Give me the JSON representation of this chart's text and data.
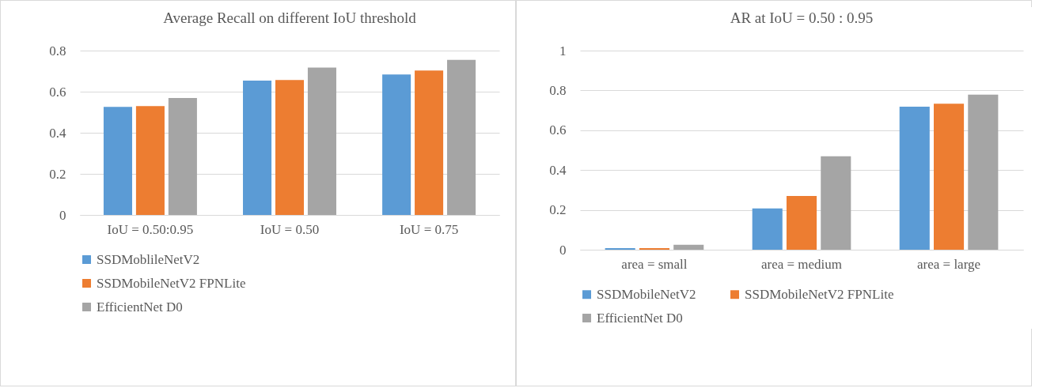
{
  "chart_data": [
    {
      "type": "bar",
      "title": "Average Recall on different IoU threshold",
      "categories": [
        "IoU = 0.50:0.95",
        "IoU = 0.50",
        "IoU = 0.75"
      ],
      "series": [
        {
          "name": "SSDMoblileNetV2",
          "color": "#5b9bd5",
          "values": [
            0.526,
            0.654,
            0.684
          ]
        },
        {
          "name": "SSDMobileNetV2 FPNLite",
          "color": "#ed7d31",
          "values": [
            0.53,
            0.657,
            0.703
          ]
        },
        {
          "name": "EfficientNet D0",
          "color": "#a5a5a5",
          "values": [
            0.569,
            0.717,
            0.755
          ]
        }
      ],
      "ylim": [
        0,
        0.8
      ],
      "yticks": [
        0,
        0.2,
        0.4,
        0.6,
        0.8
      ],
      "grid": "y",
      "legend": "bottom"
    },
    {
      "type": "bar",
      "title": "AR at IoU = 0.50 : 0.95",
      "categories": [
        "area = small",
        "area = medium",
        "area = large"
      ],
      "series": [
        {
          "name": "SSDMobileNetV2",
          "color": "#5b9bd5",
          "values": [
            0.008,
            0.207,
            0.718
          ]
        },
        {
          "name": "SSDMobileNetV2 FPNLite",
          "color": "#ed7d31",
          "values": [
            0.008,
            0.27,
            0.733
          ]
        },
        {
          "name": "EfficientNet D0",
          "color": "#a5a5a5",
          "values": [
            0.025,
            0.469,
            0.779
          ]
        }
      ],
      "ylim": [
        0,
        1
      ],
      "yticks": [
        0,
        0.2,
        0.4,
        0.6,
        0.8,
        1
      ],
      "grid": "y",
      "legend": "bottom"
    }
  ]
}
